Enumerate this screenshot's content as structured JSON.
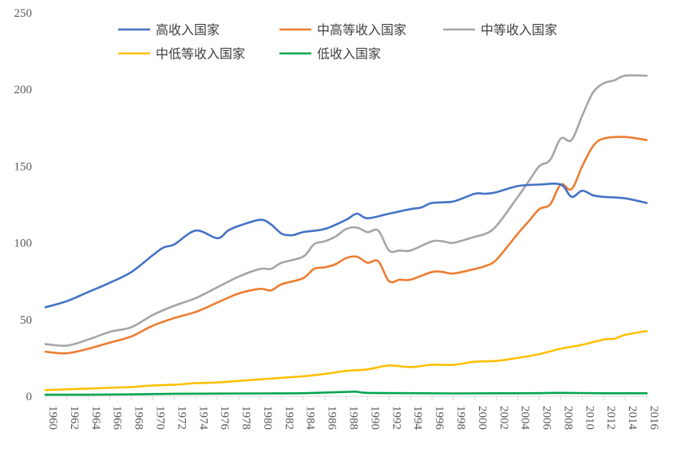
{
  "chart_data": {
    "type": "line",
    "title": "",
    "xlabel": "",
    "ylabel": "",
    "ylim": [
      0,
      250
    ],
    "yticks": [
      0,
      50,
      100,
      150,
      200,
      250
    ],
    "xlim": [
      1960,
      2016
    ],
    "xticks": [
      1960,
      1962,
      1964,
      1966,
      1968,
      1970,
      1972,
      1974,
      1976,
      1978,
      1980,
      1982,
      1984,
      1986,
      1988,
      1990,
      1992,
      1994,
      1996,
      1998,
      2000,
      2002,
      2004,
      2006,
      2008,
      2010,
      2012,
      2014,
      2016
    ],
    "grid": false,
    "legend": "top",
    "series": [
      {
        "name": "高收入国家",
        "color": "#4472C4",
        "points": [
          [
            1960,
            58
          ],
          [
            1962,
            62
          ],
          [
            1964,
            68
          ],
          [
            1966,
            74
          ],
          [
            1968,
            81
          ],
          [
            1970,
            92
          ],
          [
            1971,
            97
          ],
          [
            1972,
            99
          ],
          [
            1974,
            108
          ],
          [
            1976,
            103
          ],
          [
            1977,
            108
          ],
          [
            1978,
            111
          ],
          [
            1980,
            115
          ],
          [
            1981,
            112
          ],
          [
            1982,
            106
          ],
          [
            1983,
            105
          ],
          [
            1984,
            107
          ],
          [
            1986,
            109
          ],
          [
            1988,
            115
          ],
          [
            1989,
            119
          ],
          [
            1990,
            116
          ],
          [
            1992,
            119
          ],
          [
            1994,
            122
          ],
          [
            1995,
            123
          ],
          [
            1996,
            126
          ],
          [
            1998,
            127
          ],
          [
            2000,
            132
          ],
          [
            2001,
            132
          ],
          [
            2002,
            133
          ],
          [
            2004,
            137
          ],
          [
            2006,
            138
          ],
          [
            2008,
            138
          ],
          [
            2009,
            130
          ],
          [
            2010,
            134
          ],
          [
            2011,
            131
          ],
          [
            2012,
            130
          ],
          [
            2014,
            129
          ],
          [
            2016,
            126
          ]
        ]
      },
      {
        "name": "中高等收入国家",
        "color": "#ED7D31",
        "points": [
          [
            1960,
            29
          ],
          [
            1962,
            28
          ],
          [
            1964,
            31
          ],
          [
            1966,
            35
          ],
          [
            1968,
            39
          ],
          [
            1970,
            46
          ],
          [
            1972,
            51
          ],
          [
            1974,
            55
          ],
          [
            1976,
            61
          ],
          [
            1978,
            67
          ],
          [
            1980,
            70
          ],
          [
            1981,
            69
          ],
          [
            1982,
            73
          ],
          [
            1984,
            77
          ],
          [
            1985,
            83
          ],
          [
            1986,
            84
          ],
          [
            1987,
            86
          ],
          [
            1988,
            90
          ],
          [
            1989,
            91
          ],
          [
            1990,
            87
          ],
          [
            1991,
            88
          ],
          [
            1992,
            75
          ],
          [
            1993,
            76
          ],
          [
            1994,
            76
          ],
          [
            1996,
            81
          ],
          [
            1997,
            81
          ],
          [
            1998,
            80
          ],
          [
            2000,
            83
          ],
          [
            2001,
            85
          ],
          [
            2002,
            89
          ],
          [
            2004,
            106
          ],
          [
            2005,
            114
          ],
          [
            2006,
            122
          ],
          [
            2007,
            125
          ],
          [
            2008,
            138
          ],
          [
            2009,
            135
          ],
          [
            2010,
            150
          ],
          [
            2011,
            163
          ],
          [
            2012,
            168
          ],
          [
            2014,
            169
          ],
          [
            2016,
            167
          ]
        ]
      },
      {
        "name": "中等收入国家",
        "color": "#A5A5A5",
        "points": [
          [
            1960,
            34
          ],
          [
            1962,
            33
          ],
          [
            1964,
            37
          ],
          [
            1966,
            42
          ],
          [
            1968,
            45
          ],
          [
            1970,
            53
          ],
          [
            1972,
            59
          ],
          [
            1974,
            64
          ],
          [
            1976,
            71
          ],
          [
            1978,
            78
          ],
          [
            1980,
            83
          ],
          [
            1981,
            83
          ],
          [
            1982,
            87
          ],
          [
            1984,
            91
          ],
          [
            1985,
            99
          ],
          [
            1986,
            101
          ],
          [
            1987,
            104
          ],
          [
            1988,
            109
          ],
          [
            1989,
            110
          ],
          [
            1990,
            107
          ],
          [
            1991,
            108
          ],
          [
            1992,
            95
          ],
          [
            1993,
            95
          ],
          [
            1994,
            95
          ],
          [
            1996,
            101
          ],
          [
            1997,
            101
          ],
          [
            1998,
            100
          ],
          [
            2000,
            104
          ],
          [
            2001,
            106
          ],
          [
            2002,
            111
          ],
          [
            2004,
            130
          ],
          [
            2005,
            140
          ],
          [
            2006,
            150
          ],
          [
            2007,
            154
          ],
          [
            2008,
            168
          ],
          [
            2009,
            167
          ],
          [
            2010,
            183
          ],
          [
            2011,
            198
          ],
          [
            2012,
            204
          ],
          [
            2013,
            206
          ],
          [
            2014,
            209
          ],
          [
            2016,
            209
          ]
        ]
      },
      {
        "name": "中低等收入国家",
        "color": "#FFC000",
        "points": [
          [
            1960,
            4
          ],
          [
            1962,
            4.5
          ],
          [
            1964,
            5
          ],
          [
            1966,
            5.5
          ],
          [
            1968,
            6
          ],
          [
            1970,
            7
          ],
          [
            1972,
            7.5
          ],
          [
            1974,
            8.5
          ],
          [
            1976,
            9
          ],
          [
            1978,
            10
          ],
          [
            1980,
            11
          ],
          [
            1982,
            12
          ],
          [
            1984,
            13
          ],
          [
            1986,
            14.5
          ],
          [
            1988,
            16.5
          ],
          [
            1990,
            17.5
          ],
          [
            1992,
            20
          ],
          [
            1994,
            19
          ],
          [
            1996,
            20.5
          ],
          [
            1998,
            20.5
          ],
          [
            2000,
            22.5
          ],
          [
            2002,
            23
          ],
          [
            2004,
            25
          ],
          [
            2006,
            27.5
          ],
          [
            2008,
            31
          ],
          [
            2010,
            33.5
          ],
          [
            2012,
            37
          ],
          [
            2013,
            37.5
          ],
          [
            2014,
            40
          ],
          [
            2016,
            42.5
          ]
        ]
      },
      {
        "name": "低收入国家",
        "color": "#00A550",
        "points": [
          [
            1960,
            1
          ],
          [
            1964,
            1
          ],
          [
            1968,
            1.2
          ],
          [
            1972,
            1.6
          ],
          [
            1976,
            1.7
          ],
          [
            1980,
            1.8
          ],
          [
            1984,
            2
          ],
          [
            1988,
            2.8
          ],
          [
            1989,
            2.9
          ],
          [
            1990,
            2.2
          ],
          [
            1994,
            2
          ],
          [
            1998,
            1.8
          ],
          [
            2002,
            1.9
          ],
          [
            2006,
            2
          ],
          [
            2008,
            2.2
          ],
          [
            2012,
            1.9
          ],
          [
            2016,
            1.9
          ]
        ]
      }
    ]
  }
}
